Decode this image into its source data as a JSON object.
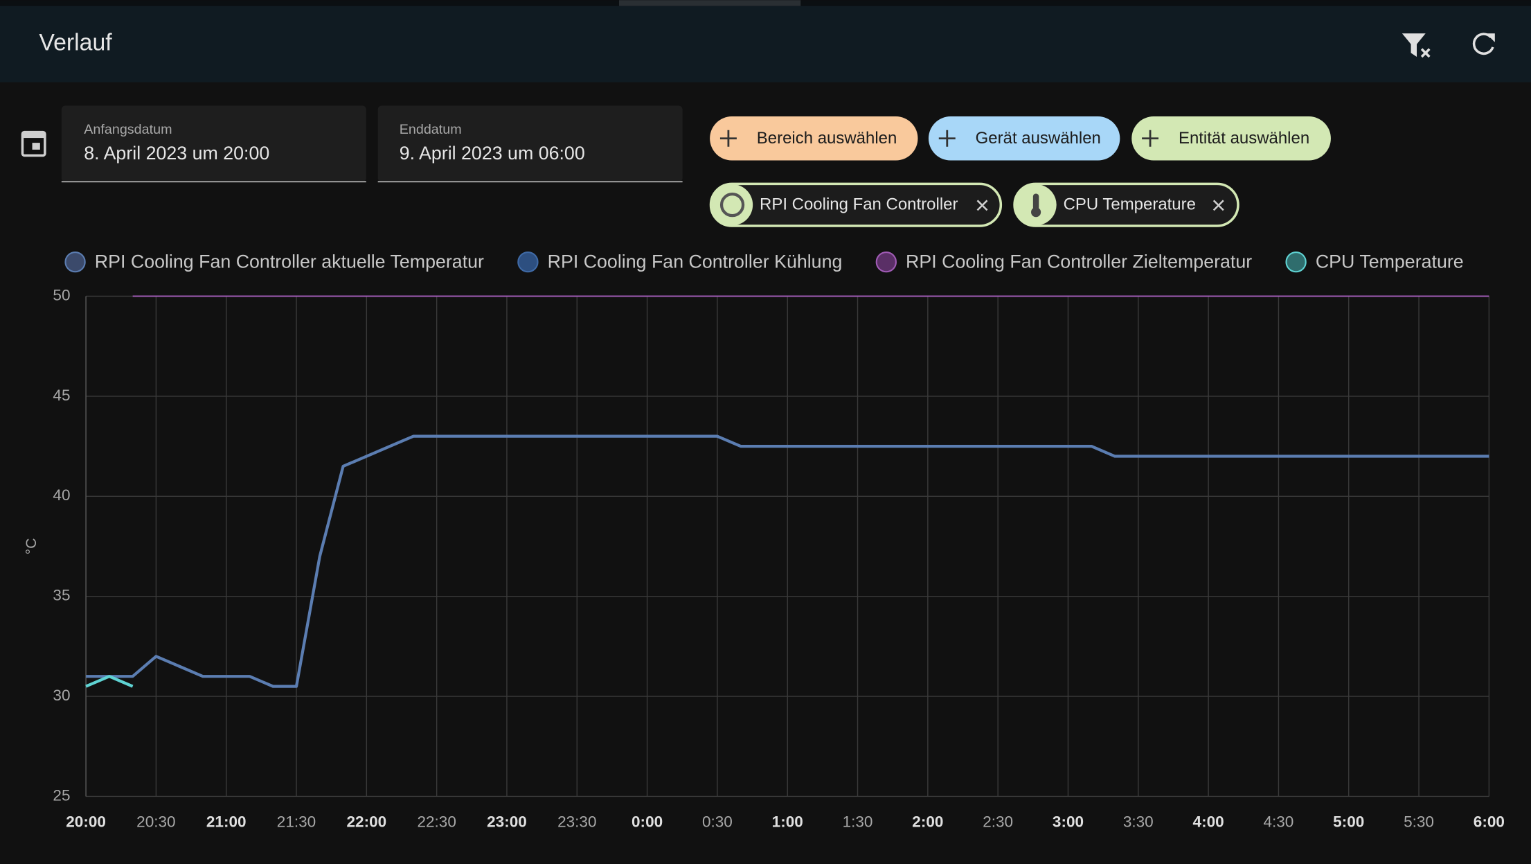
{
  "header": {
    "title": "Verlauf"
  },
  "date_range": {
    "start_label": "Anfangsdatum",
    "start_value": "8. April 2023 um 20:00",
    "end_label": "Enddatum",
    "end_value": "9. April 2023 um 06:00"
  },
  "add_chips": [
    "Bereich auswählen",
    "Gerät auswählen",
    "Entität auswählen"
  ],
  "selected_chips": [
    "RPI Cooling Fan Controller",
    "CPU Temperature"
  ],
  "chart_data": {
    "type": "line",
    "ylabel": "°C",
    "categories": [
      "20:00",
      null,
      null,
      "20:30",
      null,
      null,
      "21:00",
      null,
      null,
      "21:30",
      null,
      null,
      "22:00",
      null,
      null,
      "22:30",
      null,
      null,
      "23:00",
      null,
      null,
      "23:30",
      null,
      null,
      "0:00",
      null,
      null,
      "0:30",
      null,
      null,
      "1:00",
      null,
      null,
      "1:30",
      null,
      null,
      "2:00",
      null,
      null,
      "2:30",
      null,
      null,
      "3:00",
      null,
      null,
      "3:30",
      null,
      null,
      "4:00",
      null,
      null,
      "4:30",
      null,
      null,
      "5:00",
      null,
      null,
      "5:30",
      null,
      null,
      "6:00"
    ],
    "ylim": [
      25,
      50
    ],
    "yticks": [
      25,
      30,
      35,
      40,
      45,
      50
    ],
    "grid": true,
    "series": [
      {
        "name": "RPI Cooling Fan Controller aktuelle Temperatur",
        "color": "#5b7db1",
        "legend_color": "#3b4a6b",
        "values": [
          31,
          31,
          31,
          32,
          31.5,
          31,
          31,
          31,
          30.5,
          30.5,
          37,
          41.5,
          42,
          42.5,
          43,
          43,
          43,
          43,
          43,
          43,
          43,
          43,
          43,
          43,
          43,
          43,
          43,
          43,
          42.5,
          42.5,
          42.5,
          42.5,
          42.5,
          42.5,
          42.5,
          42.5,
          42.5,
          42.5,
          42.5,
          42.5,
          42.5,
          42.5,
          42.5,
          42.5,
          42,
          42,
          42,
          42,
          42,
          42,
          42,
          42,
          42,
          42,
          42,
          42,
          42,
          42,
          42,
          42,
          42
        ]
      },
      {
        "name": "RPI Cooling Fan Controller Kühlung",
        "color": "#3f6aa6",
        "legend_color": "#2d4f80",
        "values": [
          null,
          null,
          null,
          null,
          null,
          null,
          null,
          null,
          null,
          null,
          null,
          null,
          null,
          null,
          null,
          null,
          null,
          null,
          null,
          null,
          null,
          null,
          null,
          null,
          null,
          null,
          null,
          null,
          null,
          null,
          null,
          null,
          null,
          null,
          null,
          null,
          null,
          null,
          null,
          null,
          null,
          null,
          null,
          null,
          null,
          null,
          null,
          null,
          null,
          null,
          null,
          null,
          null,
          null,
          null,
          null,
          null,
          null,
          null,
          null,
          null
        ]
      },
      {
        "name": "RPI Cooling Fan Controller Zieltemperatur",
        "color": "#a05bb5",
        "legend_color": "#5a2f66",
        "values": [
          null,
          null,
          50,
          50,
          50,
          50,
          50,
          50,
          50,
          50,
          50,
          50,
          50,
          50,
          50,
          50,
          50,
          50,
          50,
          50,
          50,
          50,
          50,
          50,
          50,
          50,
          50,
          50,
          50,
          50,
          50,
          50,
          50,
          50,
          50,
          50,
          50,
          50,
          50,
          50,
          50,
          50,
          50,
          50,
          50,
          50,
          50,
          50,
          50,
          50,
          50,
          50,
          50,
          50,
          50,
          50,
          50,
          50,
          50,
          50,
          50
        ]
      },
      {
        "name": "CPU Temperature",
        "color": "#5fd3d3",
        "legend_color": "#2f6d6d",
        "values": [
          30.5,
          31,
          30.5,
          null,
          null,
          null,
          null,
          null,
          null,
          null,
          null,
          null,
          null,
          null,
          null,
          null,
          null,
          null,
          null,
          null,
          null,
          null,
          null,
          null,
          null,
          null,
          null,
          null,
          null,
          null,
          null,
          null,
          null,
          null,
          null,
          null,
          null,
          null,
          null,
          null,
          null,
          null,
          null,
          null,
          null,
          null,
          null,
          null,
          null,
          null,
          null,
          null,
          null,
          null,
          null,
          null,
          null,
          null,
          null,
          null,
          null
        ]
      }
    ]
  }
}
